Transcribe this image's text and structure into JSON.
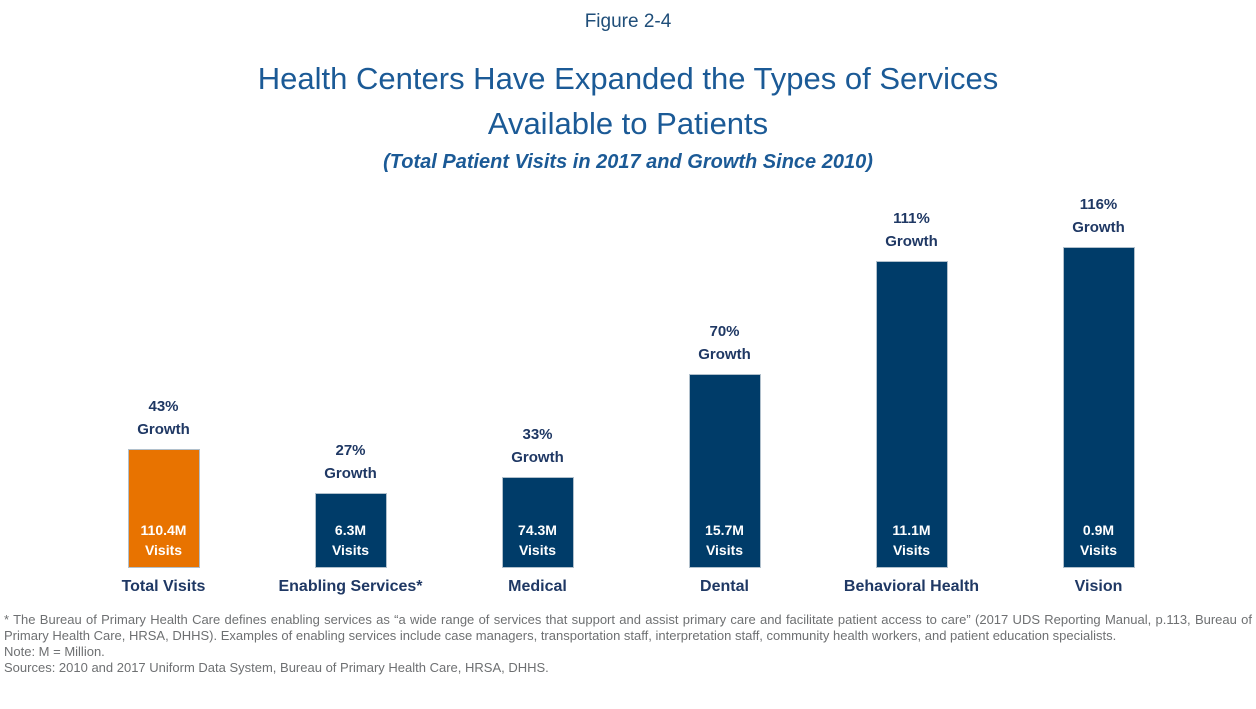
{
  "figure": {
    "label": "Figure 2-4",
    "title_line1": "Health Centers Have Expanded the Types of Services",
    "title_line2": "Available to Patients",
    "subtitle": "(Total Patient Visits in 2017 and Growth Since 2010)"
  },
  "colors": {
    "highlight_bar_orange": "#E87300",
    "bar_navy": "#003C69",
    "title_blue": "#1B5A96",
    "figure_label_navy": "#1F4E79",
    "label_navy": "#1F3864",
    "footnote_gray": "#6E7072"
  },
  "chart_data": {
    "type": "bar",
    "title": "Health Centers Have Expanded the Types of Services Available to Patients",
    "subtitle": "(Total Patient Visits in 2017 and Growth Since 2010)",
    "bar_height_encodes": "growth_percent_since_2010",
    "axes": "none",
    "grid": false,
    "legend": "none",
    "categories": [
      "Total Visits",
      "Enabling Services*",
      "Medical",
      "Dental",
      "Behavioral Health",
      "Vision"
    ],
    "series": [
      {
        "name": "Growth Since 2010 (%)",
        "values": [
          43,
          27,
          33,
          70,
          111,
          116
        ]
      },
      {
        "name": "Patient Visits in 2017 (millions)",
        "values": [
          110.4,
          6.3,
          74.3,
          15.7,
          11.1,
          0.9
        ]
      }
    ],
    "bars": [
      {
        "category": "Total Visits",
        "growth_pct": 43,
        "growth_label": "43%",
        "growth_word": "Growth",
        "visits_value": "110.4M",
        "visits_word": "Visits",
        "color": "#E87300"
      },
      {
        "category": "Enabling Services*",
        "growth_pct": 27,
        "growth_label": "27%",
        "growth_word": "Growth",
        "visits_value": "6.3M",
        "visits_word": "Visits",
        "color": "#003C69"
      },
      {
        "category": "Medical",
        "growth_pct": 33,
        "growth_label": "33%",
        "growth_word": "Growth",
        "visits_value": "74.3M",
        "visits_word": "Visits",
        "color": "#003C69"
      },
      {
        "category": "Dental",
        "growth_pct": 70,
        "growth_label": "70%",
        "growth_word": "Growth",
        "visits_value": "15.7M",
        "visits_word": "Visits",
        "color": "#003C69"
      },
      {
        "category": "Behavioral Health",
        "growth_pct": 111,
        "growth_label": "111%",
        "growth_word": "Growth",
        "visits_value": "11.1M",
        "visits_word": "Visits",
        "color": "#003C69"
      },
      {
        "category": "Vision",
        "growth_pct": 116,
        "growth_label": "116%",
        "growth_word": "Growth",
        "visits_value": "0.9M",
        "visits_word": "Visits",
        "color": "#003C69"
      }
    ]
  },
  "footnotes": {
    "asterisk": "* The Bureau of Primary Health Care defines enabling services as “a wide range of services that support and assist primary care and facilitate patient access to care” (2017 UDS Reporting Manual, p.113, Bureau of Primary Health Care, HRSA, DHHS). Examples of enabling services include case managers, transportation staff, interpretation staff, community health workers, and patient education specialists.",
    "note": "Note: M = Million.",
    "sources": "Sources: 2010 and 2017 Uniform Data System, Bureau of Primary Health Care, HRSA, DHHS."
  }
}
